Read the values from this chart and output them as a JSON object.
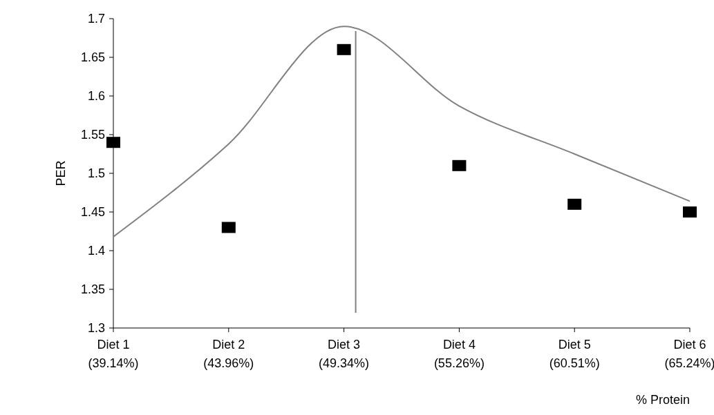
{
  "chart_data": {
    "type": "scatter",
    "xlabel": "% Protein",
    "ylabel": "PER",
    "categories": [
      "Diet 1\n(39.14%)",
      "Diet 2\n(43.96%)",
      "Diet 3\n(49.34%)",
      "Diet 4\n(55.26%)",
      "Diet 5\n(60.51%)",
      "Diet 6\n(65.24%)"
    ],
    "ylim": [
      1.3,
      1.7
    ],
    "yticks": [
      1.3,
      1.35,
      1.4,
      1.45,
      1.5,
      1.55,
      1.6,
      1.65,
      1.7
    ],
    "grid": false,
    "ref_lines": [
      {
        "axis": "x",
        "value": "Diet 3\n(49.34%)",
        "color": "#808080"
      }
    ],
    "series": [
      {
        "color": "#000000",
        "marker": "square",
        "values": [
          1.54,
          1.43,
          1.66,
          1.51,
          1.46,
          1.45
        ]
      },
      {
        "type": "line",
        "color": "#808080",
        "marker": "none",
        "line_style": "solid",
        "values": [
          1.418,
          1.538,
          1.69,
          1.587,
          1.525,
          1.464
        ]
      }
    ]
  }
}
